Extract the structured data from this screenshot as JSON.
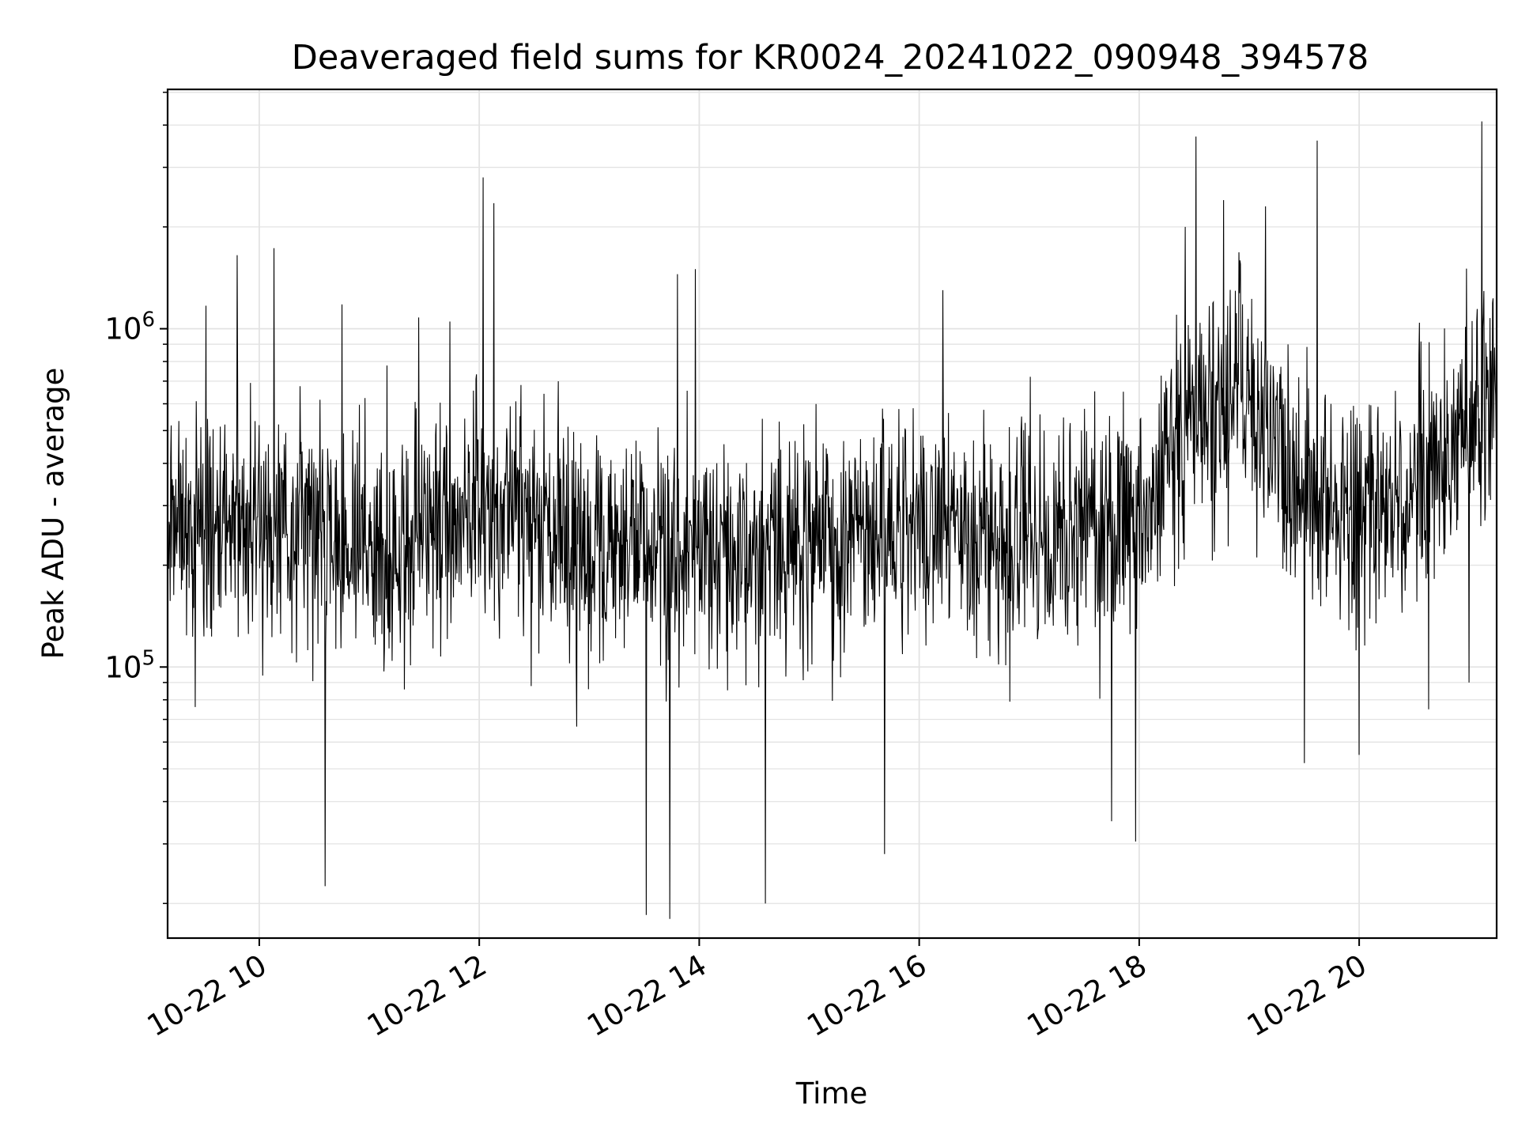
{
  "chart_data": {
    "type": "line",
    "title": "Deaveraged field sums for KR0024_20241022_090948_394578",
    "xlabel": "Time",
    "ylabel": "Peak ADU - average",
    "yscale": "log",
    "ylim": [
      15800,
      5100000
    ],
    "xlim": [
      "2024-10-22 09:10",
      "2024-10-22 21:15"
    ],
    "x_ticks": [
      {
        "value": "2024-10-22 10:00",
        "label": "10-22 10"
      },
      {
        "value": "2024-10-22 12:00",
        "label": "10-22 12"
      },
      {
        "value": "2024-10-22 14:00",
        "label": "10-22 14"
      },
      {
        "value": "2024-10-22 16:00",
        "label": "10-22 16"
      },
      {
        "value": "2024-10-22 18:00",
        "label": "10-22 18"
      },
      {
        "value": "2024-10-22 20:00",
        "label": "10-22 20"
      }
    ],
    "y_ticks": [
      {
        "value": 100000,
        "base": "10",
        "exp": "5"
      },
      {
        "value": 1000000,
        "base": "10",
        "exp": "6"
      }
    ],
    "grid": true,
    "line_color": "#000000",
    "series_trend": [
      {
        "time": "2024-10-22 09:10",
        "value": 250000
      },
      {
        "time": "2024-10-22 10:00",
        "value": 270000
      },
      {
        "time": "2024-10-22 11:00",
        "value": 220000
      },
      {
        "time": "2024-10-22 12:00",
        "value": 300000
      },
      {
        "time": "2024-10-22 13:00",
        "value": 230000
      },
      {
        "time": "2024-10-22 14:00",
        "value": 210000
      },
      {
        "time": "2024-10-22 15:00",
        "value": 230000
      },
      {
        "time": "2024-10-22 16:00",
        "value": 240000
      },
      {
        "time": "2024-10-22 17:00",
        "value": 230000
      },
      {
        "time": "2024-10-22 18:00",
        "value": 260000
      },
      {
        "time": "2024-10-22 18:30",
        "value": 600000
      },
      {
        "time": "2024-10-22 19:00",
        "value": 600000
      },
      {
        "time": "2024-10-22 19:30",
        "value": 320000
      },
      {
        "time": "2024-10-22 20:00",
        "value": 300000
      },
      {
        "time": "2024-10-22 20:30",
        "value": 330000
      },
      {
        "time": "2024-10-22 21:15",
        "value": 600000
      }
    ],
    "series_spikes": [
      {
        "time": "2024-10-22 09:31",
        "value": 1170000
      },
      {
        "time": "2024-10-22 09:48",
        "value": 1650000
      },
      {
        "time": "2024-10-22 10:08",
        "value": 1730000
      },
      {
        "time": "2024-10-22 10:36",
        "value": 22500
      },
      {
        "time": "2024-10-22 10:45",
        "value": 1180000
      },
      {
        "time": "2024-10-22 11:27",
        "value": 1080000
      },
      {
        "time": "2024-10-22 11:44",
        "value": 1050000
      },
      {
        "time": "2024-10-22 12:02",
        "value": 2800000
      },
      {
        "time": "2024-10-22 12:08",
        "value": 2350000
      },
      {
        "time": "2024-10-22 13:31",
        "value": 18500
      },
      {
        "time": "2024-10-22 13:44",
        "value": 18000
      },
      {
        "time": "2024-10-22 13:48",
        "value": 1450000
      },
      {
        "time": "2024-10-22 13:58",
        "value": 1500000
      },
      {
        "time": "2024-10-22 14:36",
        "value": 20000
      },
      {
        "time": "2024-10-22 15:41",
        "value": 28000
      },
      {
        "time": "2024-10-22 16:13",
        "value": 1300000
      },
      {
        "time": "2024-10-22 17:45",
        "value": 35000
      },
      {
        "time": "2024-10-22 17:58",
        "value": 30500
      },
      {
        "time": "2024-10-22 18:25",
        "value": 2000000
      },
      {
        "time": "2024-10-22 18:31",
        "value": 3700000
      },
      {
        "time": "2024-10-22 18:46",
        "value": 2400000
      },
      {
        "time": "2024-10-22 19:09",
        "value": 2300000
      },
      {
        "time": "2024-10-22 19:30",
        "value": 52000
      },
      {
        "time": "2024-10-22 19:37",
        "value": 3600000
      },
      {
        "time": "2024-10-22 20:00",
        "value": 55000
      },
      {
        "time": "2024-10-22 20:38",
        "value": 75000
      },
      {
        "time": "2024-10-22 21:00",
        "value": 90000
      },
      {
        "time": "2024-10-22 21:07",
        "value": 4100000
      }
    ]
  }
}
